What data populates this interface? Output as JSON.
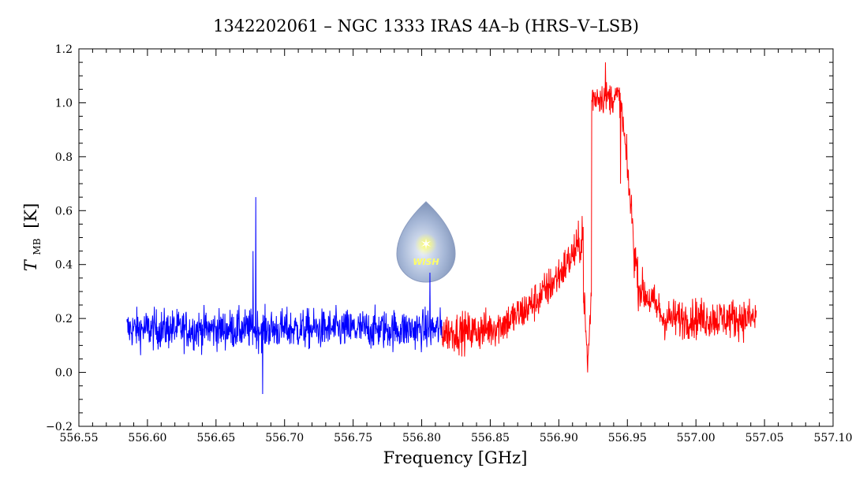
{
  "chart_data": {
    "type": "line",
    "title": "1342202061 – NGC 1333 IRAS 4A–b (HRS–V–LSB)",
    "xlabel": "Frequency [GHz]",
    "ylabel_main": "T",
    "ylabel_sub": "MB",
    "ylabel_unit": "[K]",
    "xlim": [
      556.55,
      557.1
    ],
    "ylim": [
      -0.2,
      1.2
    ],
    "x_ticks": [
      "556.55",
      "556.60",
      "556.65",
      "556.70",
      "556.75",
      "556.80",
      "556.85",
      "556.90",
      "556.95",
      "557.00",
      "557.05",
      "557.10"
    ],
    "y_ticks": [
      "−0.2",
      "0.0",
      "0.2",
      "0.4",
      "0.6",
      "0.8",
      "1.0",
      "1.2"
    ],
    "grid": false,
    "series": [
      {
        "color": "#0000ff",
        "x_range": [
          556.585,
          556.815
        ],
        "baseline": 0.16,
        "noise": 0.07,
        "features": [
          {
            "x": 556.679,
            "y": 0.65
          },
          {
            "x": 556.677,
            "y": 0.45
          },
          {
            "x": 556.684,
            "y": -0.08
          },
          {
            "x": 556.806,
            "y": 0.37
          }
        ]
      },
      {
        "color": "#ff0000",
        "x_range": [
          556.815,
          557.044
        ],
        "baseline": 0.15,
        "noise": 0.07,
        "features": [
          {
            "x": 556.905,
            "y": 0.35
          },
          {
            "x": 556.917,
            "y": 0.58
          },
          {
            "x": 556.921,
            "y": 0.0
          },
          {
            "x": 556.928,
            "y": 1.05
          },
          {
            "x": 556.934,
            "y": 1.15
          },
          {
            "x": 556.945,
            "y": 0.7
          },
          {
            "x": 556.955,
            "y": 0.35
          },
          {
            "x": 557.044,
            "y": 0.23
          }
        ]
      }
    ],
    "logo": {
      "text": "WISH",
      "x": 556.806,
      "y": 0.4
    }
  }
}
